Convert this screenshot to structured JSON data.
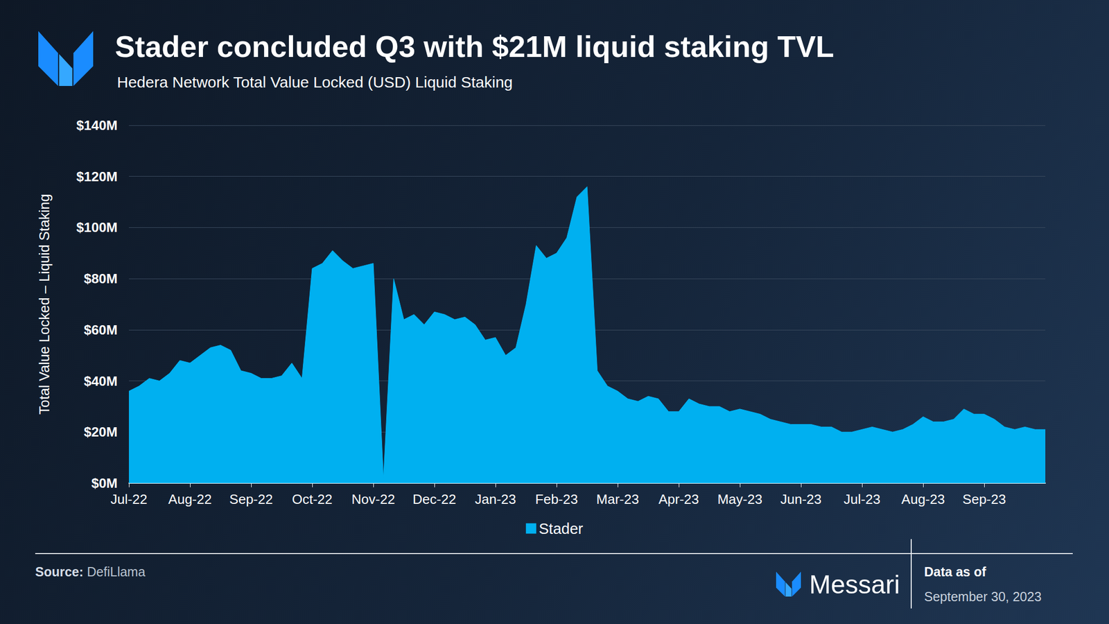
{
  "chart_data": {
    "type": "area",
    "title": "Stader concluded Q3 with $21M liquid staking TVL",
    "subtitle": "Hedera Network Total Value Locked (USD) Liquid Staking",
    "y_label": "Total Value Locked – Liquid Staking",
    "source_label": "Source:",
    "source": "DefiLlama",
    "brand": "Messari",
    "date_label": "Data as of",
    "date": "September 30, 2023",
    "categories": [
      "Jul-22",
      null,
      null,
      null,
      null,
      null,
      "Aug-22",
      null,
      null,
      null,
      null,
      null,
      "Sep-22",
      null,
      null,
      null,
      null,
      null,
      "Oct-22",
      null,
      null,
      null,
      null,
      null,
      "Nov-22",
      null,
      null,
      null,
      null,
      null,
      "Dec-22",
      null,
      null,
      null,
      null,
      null,
      "Jan-23",
      null,
      null,
      null,
      null,
      null,
      "Feb-23",
      null,
      null,
      null,
      null,
      null,
      "Mar-23",
      null,
      null,
      null,
      null,
      null,
      "Apr-23",
      null,
      null,
      null,
      null,
      null,
      "May-23",
      null,
      null,
      null,
      null,
      null,
      "Jun-23",
      null,
      null,
      null,
      null,
      null,
      "Jul-23",
      null,
      null,
      null,
      null,
      null,
      "Aug-23",
      null,
      null,
      null,
      null,
      null,
      "Sep-23",
      null,
      null,
      null,
      null,
      null,
      null
    ],
    "series": [
      {
        "name": "Stader",
        "color": "#00b0f0",
        "values": [
          36,
          38,
          41,
          40,
          43,
          48,
          47,
          50,
          53,
          54,
          52,
          44,
          43,
          41,
          41,
          42,
          47,
          41,
          84,
          86,
          91,
          87,
          84,
          85,
          86,
          2,
          80,
          64,
          66,
          62,
          67,
          66,
          64,
          65,
          62,
          56,
          57,
          50,
          53,
          70,
          93,
          88,
          90,
          96,
          112,
          116,
          44,
          38,
          36,
          33,
          32,
          34,
          33,
          28,
          28,
          33,
          31,
          30,
          30,
          28,
          29,
          28,
          27,
          25,
          24,
          23,
          23,
          23,
          22,
          22,
          20,
          20,
          21,
          22,
          21,
          20,
          21,
          23,
          26,
          24,
          24,
          25,
          29,
          27,
          27,
          25,
          22,
          21,
          22,
          21,
          21
        ]
      }
    ],
    "ylim": [
      0,
      140
    ],
    "yticks": [
      {
        "value": 0,
        "label": "$0M"
      },
      {
        "value": 20,
        "label": "$20M"
      },
      {
        "value": 40,
        "label": "$40M"
      },
      {
        "value": 60,
        "label": "$60M"
      },
      {
        "value": 80,
        "label": "$80M"
      },
      {
        "value": 100,
        "label": "$100M"
      },
      {
        "value": 120,
        "label": "$120M"
      },
      {
        "value": 140,
        "label": "$140M"
      }
    ],
    "grid": true,
    "legend": "bottom"
  }
}
